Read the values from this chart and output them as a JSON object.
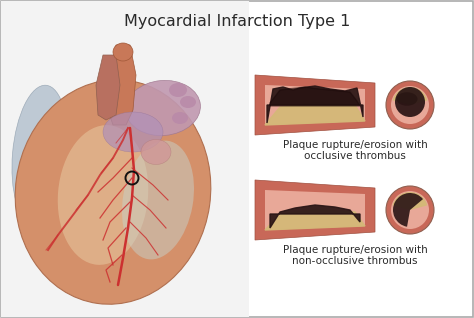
{
  "title": "Myocardial Infarction Type 1",
  "title_fontsize": 11.5,
  "title_color": "#2a2a2a",
  "label1_line1": "Plaque rupture/erosion with",
  "label1_line2": "occlusive thrombus",
  "label2_line1": "Plaque rupture/erosion with",
  "label2_line2": "non-occlusive thrombus",
  "label_fontsize": 7.5,
  "label_color": "#2a2a2a",
  "bg_left": "#f5f5f5",
  "bg_right": "#ffffff",
  "border_color": "#aaaaaa",
  "artery_outer_color": "#c86858",
  "artery_inner_color": "#d98878",
  "artery_lumen_color": "#e8a898",
  "plaque_color": "#d4b878",
  "thrombus_dark": "#2a1515",
  "thrombus_mid": "#4a2525",
  "circle_color": "#111111",
  "heart_main": "#d08060",
  "heart_highlight": "#e8c8a8",
  "heart_shadow": "#b06040",
  "heart_purple": "#b090b8",
  "heart_artery": "#cc3030"
}
